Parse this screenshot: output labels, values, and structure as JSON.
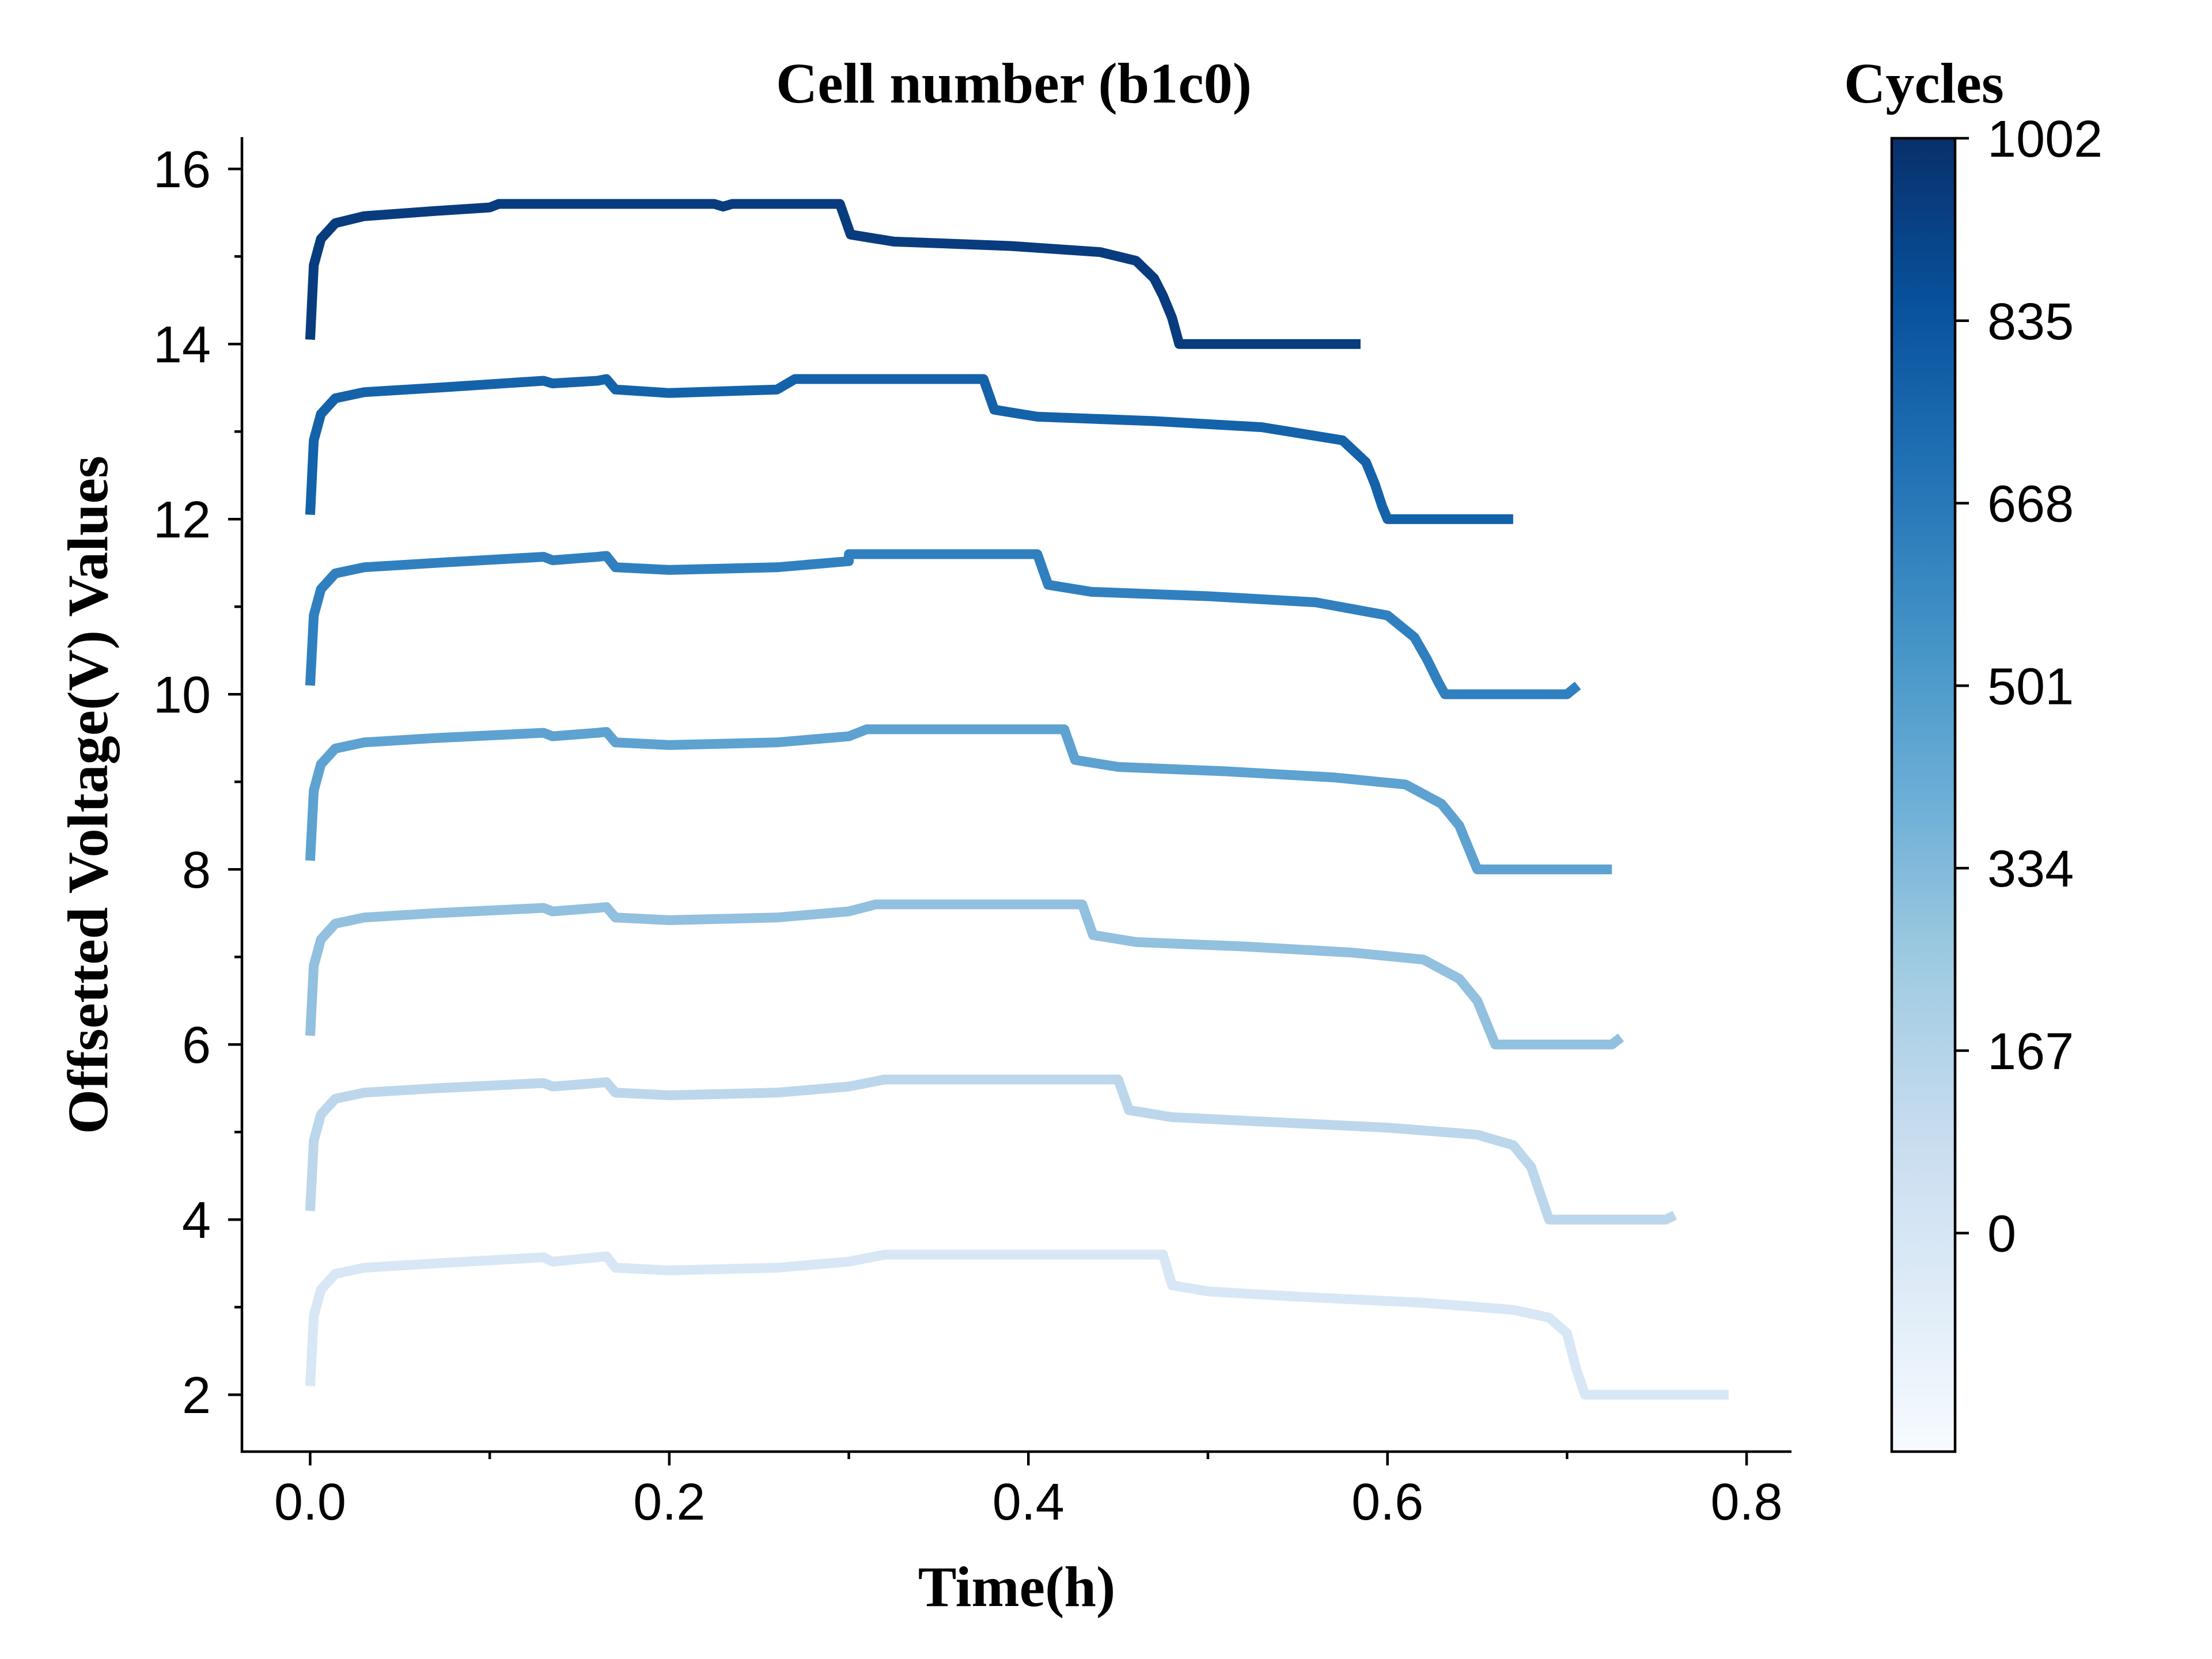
{
  "chart_data": {
    "type": "line",
    "title": "Cell number (b1c0)",
    "xlabel": "Time(h)",
    "ylabel": "Offsetted Voltage(V) Values",
    "xlim": [
      -0.038,
      0.825
    ],
    "ylim": [
      1.35,
      16.35
    ],
    "x_ticks": [
      "0.0",
      "0.2",
      "0.4",
      "0.6",
      "0.8"
    ],
    "x_tick_values": [
      0.0,
      0.2,
      0.4,
      0.6,
      0.8
    ],
    "x_minor_ticks": [
      0.1,
      0.3,
      0.5,
      0.7
    ],
    "y_ticks": [
      "2",
      "4",
      "6",
      "8",
      "10",
      "12",
      "14",
      "16"
    ],
    "y_tick_values": [
      2,
      4,
      6,
      8,
      10,
      12,
      14,
      16
    ],
    "y_minor_ticks": [
      3,
      5,
      7,
      9,
      11,
      13,
      15
    ],
    "grid": false,
    "colorbar": {
      "label": "Cycles",
      "ticks": [
        "1002",
        "835",
        "668",
        "501",
        "334",
        "167",
        "0"
      ],
      "tick_values": [
        1002,
        835,
        668,
        501,
        334,
        167,
        0
      ],
      "range": [
        -200,
        1002
      ],
      "colormap": "Blues",
      "colors": [
        "#f7fbff",
        "#deebf7",
        "#c6dbef",
        "#9ecae1",
        "#6baed6",
        "#4292c6",
        "#2171b5",
        "#08519c",
        "#08306b"
      ]
    },
    "series": [
      {
        "cycle": 0,
        "color": "#d8e7f5",
        "points": [
          [
            0,
            2.1
          ],
          [
            0.002,
            2.9
          ],
          [
            0.006,
            3.2
          ],
          [
            0.014,
            3.38
          ],
          [
            0.03,
            3.45
          ],
          [
            0.07,
            3.5
          ],
          [
            0.13,
            3.57
          ],
          [
            0.135,
            3.52
          ],
          [
            0.16,
            3.57
          ],
          [
            0.165,
            3.58
          ],
          [
            0.17,
            3.45
          ],
          [
            0.2,
            3.42
          ],
          [
            0.26,
            3.45
          ],
          [
            0.3,
            3.52
          ],
          [
            0.32,
            3.6
          ],
          [
            0.475,
            3.6
          ],
          [
            0.48,
            3.25
          ],
          [
            0.5,
            3.18
          ],
          [
            0.55,
            3.12
          ],
          [
            0.62,
            3.05
          ],
          [
            0.67,
            2.97
          ],
          [
            0.69,
            2.88
          ],
          [
            0.7,
            2.7
          ],
          [
            0.705,
            2.3
          ],
          [
            0.71,
            2.0
          ],
          [
            0.79,
            2.0
          ]
        ]
      },
      {
        "cycle": 167,
        "color": "#bcd7eb",
        "points": [
          [
            0,
            4.1
          ],
          [
            0.002,
            4.9
          ],
          [
            0.006,
            5.2
          ],
          [
            0.014,
            5.38
          ],
          [
            0.03,
            5.45
          ],
          [
            0.07,
            5.5
          ],
          [
            0.13,
            5.56
          ],
          [
            0.135,
            5.52
          ],
          [
            0.16,
            5.56
          ],
          [
            0.165,
            5.57
          ],
          [
            0.17,
            5.45
          ],
          [
            0.2,
            5.42
          ],
          [
            0.26,
            5.45
          ],
          [
            0.3,
            5.52
          ],
          [
            0.32,
            5.6
          ],
          [
            0.45,
            5.6
          ],
          [
            0.456,
            5.25
          ],
          [
            0.48,
            5.17
          ],
          [
            0.53,
            5.12
          ],
          [
            0.6,
            5.05
          ],
          [
            0.65,
            4.97
          ],
          [
            0.67,
            4.85
          ],
          [
            0.68,
            4.6
          ],
          [
            0.685,
            4.3
          ],
          [
            0.69,
            4.0
          ],
          [
            0.755,
            4.0
          ],
          [
            0.76,
            4.05
          ]
        ]
      },
      {
        "cycle": 334,
        "color": "#92c0df",
        "points": [
          [
            0,
            6.1
          ],
          [
            0.002,
            6.9
          ],
          [
            0.006,
            7.2
          ],
          [
            0.014,
            7.38
          ],
          [
            0.03,
            7.45
          ],
          [
            0.07,
            7.5
          ],
          [
            0.13,
            7.56
          ],
          [
            0.135,
            7.52
          ],
          [
            0.16,
            7.56
          ],
          [
            0.165,
            7.57
          ],
          [
            0.17,
            7.45
          ],
          [
            0.2,
            7.42
          ],
          [
            0.26,
            7.45
          ],
          [
            0.3,
            7.52
          ],
          [
            0.315,
            7.6
          ],
          [
            0.43,
            7.6
          ],
          [
            0.436,
            7.25
          ],
          [
            0.46,
            7.17
          ],
          [
            0.52,
            7.12
          ],
          [
            0.58,
            7.05
          ],
          [
            0.62,
            6.97
          ],
          [
            0.64,
            6.75
          ],
          [
            0.65,
            6.5
          ],
          [
            0.655,
            6.25
          ],
          [
            0.66,
            6.0
          ],
          [
            0.725,
            6.0
          ],
          [
            0.73,
            6.08
          ]
        ]
      },
      {
        "cycle": 501,
        "color": "#5da2d1",
        "points": [
          [
            0,
            8.1
          ],
          [
            0.002,
            8.9
          ],
          [
            0.006,
            9.2
          ],
          [
            0.014,
            9.38
          ],
          [
            0.03,
            9.45
          ],
          [
            0.07,
            9.5
          ],
          [
            0.13,
            9.56
          ],
          [
            0.135,
            9.52
          ],
          [
            0.16,
            9.56
          ],
          [
            0.165,
            9.57
          ],
          [
            0.17,
            9.45
          ],
          [
            0.2,
            9.42
          ],
          [
            0.26,
            9.45
          ],
          [
            0.3,
            9.52
          ],
          [
            0.31,
            9.6
          ],
          [
            0.42,
            9.6
          ],
          [
            0.426,
            9.25
          ],
          [
            0.45,
            9.17
          ],
          [
            0.51,
            9.12
          ],
          [
            0.57,
            9.05
          ],
          [
            0.61,
            8.97
          ],
          [
            0.63,
            8.75
          ],
          [
            0.64,
            8.5
          ],
          [
            0.645,
            8.25
          ],
          [
            0.65,
            8.0
          ],
          [
            0.725,
            8.0
          ]
        ]
      },
      {
        "cycle": 668,
        "color": "#3080c0",
        "points": [
          [
            0,
            10.1
          ],
          [
            0.002,
            10.9
          ],
          [
            0.006,
            11.2
          ],
          [
            0.014,
            11.38
          ],
          [
            0.03,
            11.45
          ],
          [
            0.07,
            11.5
          ],
          [
            0.13,
            11.57
          ],
          [
            0.135,
            11.53
          ],
          [
            0.16,
            11.57
          ],
          [
            0.165,
            11.58
          ],
          [
            0.17,
            11.45
          ],
          [
            0.2,
            11.42
          ],
          [
            0.26,
            11.45
          ],
          [
            0.3,
            11.52
          ],
          [
            0.3,
            11.6
          ],
          [
            0.405,
            11.6
          ],
          [
            0.411,
            11.25
          ],
          [
            0.435,
            11.17
          ],
          [
            0.5,
            11.12
          ],
          [
            0.56,
            11.05
          ],
          [
            0.6,
            10.9
          ],
          [
            0.615,
            10.65
          ],
          [
            0.622,
            10.4
          ],
          [
            0.628,
            10.15
          ],
          [
            0.632,
            10.0
          ],
          [
            0.7,
            10.0
          ],
          [
            0.706,
            10.1
          ]
        ]
      },
      {
        "cycle": 835,
        "color": "#1462aa",
        "points": [
          [
            0,
            12.05
          ],
          [
            0.002,
            12.9
          ],
          [
            0.006,
            13.2
          ],
          [
            0.014,
            13.38
          ],
          [
            0.03,
            13.45
          ],
          [
            0.07,
            13.5
          ],
          [
            0.13,
            13.58
          ],
          [
            0.135,
            13.55
          ],
          [
            0.16,
            13.58
          ],
          [
            0.165,
            13.6
          ],
          [
            0.17,
            13.48
          ],
          [
            0.2,
            13.44
          ],
          [
            0.26,
            13.48
          ],
          [
            0.27,
            13.6
          ],
          [
            0.375,
            13.6
          ],
          [
            0.381,
            13.25
          ],
          [
            0.405,
            13.17
          ],
          [
            0.47,
            13.12
          ],
          [
            0.53,
            13.05
          ],
          [
            0.575,
            12.9
          ],
          [
            0.588,
            12.65
          ],
          [
            0.593,
            12.4
          ],
          [
            0.597,
            12.15
          ],
          [
            0.6,
            12.0
          ],
          [
            0.67,
            12.0
          ]
        ]
      },
      {
        "cycle": 1002,
        "color": "#083c7e",
        "points": [
          [
            0,
            14.05
          ],
          [
            0.002,
            14.9
          ],
          [
            0.006,
            15.2
          ],
          [
            0.014,
            15.38
          ],
          [
            0.03,
            15.46
          ],
          [
            0.07,
            15.52
          ],
          [
            0.1,
            15.56
          ],
          [
            0.105,
            15.6
          ],
          [
            0.225,
            15.6
          ],
          [
            0.23,
            15.57
          ],
          [
            0.235,
            15.6
          ],
          [
            0.295,
            15.6
          ],
          [
            0.301,
            15.25
          ],
          [
            0.325,
            15.17
          ],
          [
            0.39,
            15.12
          ],
          [
            0.44,
            15.05
          ],
          [
            0.46,
            14.95
          ],
          [
            0.47,
            14.75
          ],
          [
            0.475,
            14.55
          ],
          [
            0.48,
            14.3
          ],
          [
            0.484,
            14.0
          ],
          [
            0.585,
            14.0
          ]
        ]
      }
    ]
  }
}
